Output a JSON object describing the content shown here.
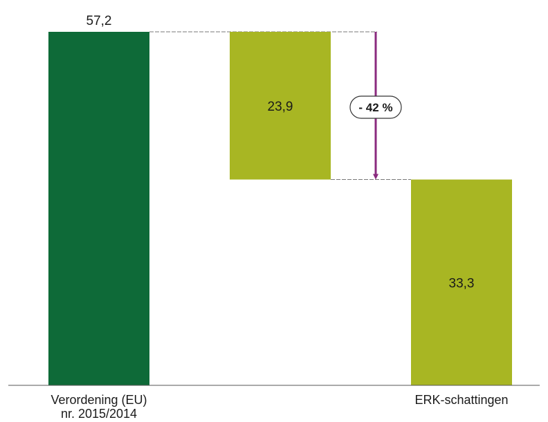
{
  "chart_data": {
    "type": "bar",
    "subtype": "waterfall",
    "title": "",
    "xlabel": "",
    "ylabel": "",
    "ylim": [
      0,
      57.2
    ],
    "grid": false,
    "legend": "none",
    "categories": [
      [
        "Verordening (EU)",
        "nr. 2015/2014"
      ],
      [],
      [
        "ERK-schattingen"
      ]
    ],
    "bars": [
      {
        "base": 0,
        "value": 57.2,
        "label": "57,2",
        "label_position": "above",
        "color": "#0e6a38"
      },
      {
        "base": 33.3,
        "value": 23.9,
        "label": "23,9",
        "label_position": "inside",
        "color": "#a8b623"
      },
      {
        "base": 0,
        "value": 33.3,
        "label": "33,3",
        "label_position": "inside",
        "color": "#a8b623"
      }
    ],
    "annotation": {
      "text": "- 42 %",
      "from": 57.2,
      "to": 33.3,
      "color": "#8a2a7e"
    },
    "axis_color": "#555555",
    "connector_color": "#777777"
  }
}
